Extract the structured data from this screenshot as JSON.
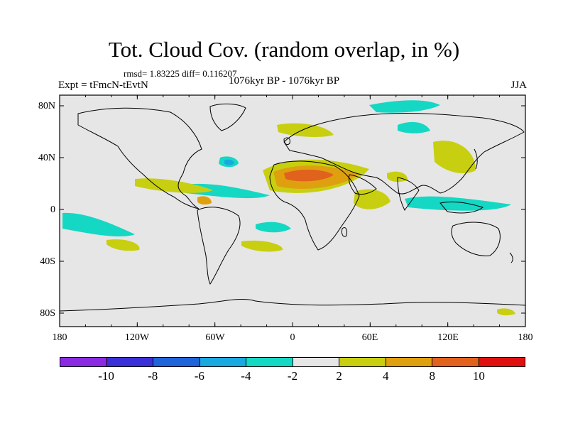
{
  "title": "Tot. Cloud Cov. (random overlap, in %)",
  "stats": "rmsd= 1.83225  diff= 0.116207",
  "expt": "Expt = tFmcN-tEvtN",
  "period": "1076kyr BP - 1076kyr BP",
  "season": "JJA",
  "y_ticks": [
    "80N",
    "40N",
    "0",
    "40S",
    "80S"
  ],
  "x_ticks": [
    "180",
    "120W",
    "60W",
    "0",
    "60E",
    "120E",
    "180"
  ],
  "colorbar": {
    "colors": [
      "#8a2be2",
      "#3b2fd8",
      "#1f64d8",
      "#19a8e0",
      "#14d8c4",
      "#e6e6e6",
      "#c8cf10",
      "#dfa010",
      "#e0621c",
      "#e01010"
    ],
    "labels": [
      "-10",
      "-8",
      "-6",
      "-4",
      "-2",
      "2",
      "4",
      "8",
      "10"
    ]
  },
  "colors": {
    "background": "#e6e6e6",
    "coast": "#000000"
  }
}
